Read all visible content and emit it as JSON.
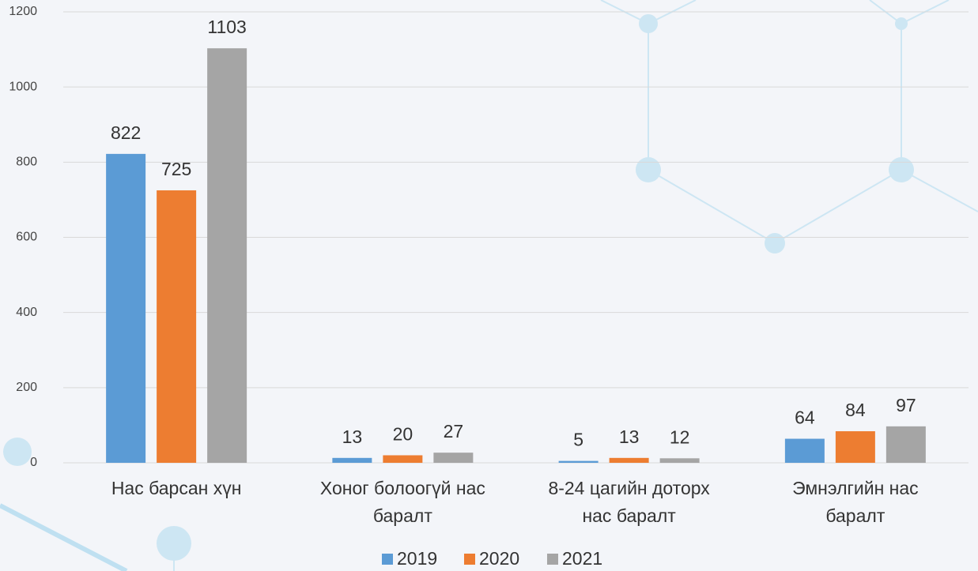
{
  "chart_data": {
    "type": "bar",
    "categories": [
      "Нас барсан хүн",
      "Хоног болоогүй нас баралт",
      "8-24 цагийн доторх нас баралт",
      "Эмнэлгийн нас баралт"
    ],
    "series": [
      {
        "name": "2019",
        "color": "#5b9bd5",
        "values": [
          822,
          13,
          5,
          64
        ]
      },
      {
        "name": "2020",
        "color": "#ed7d31",
        "values": [
          725,
          20,
          13,
          84
        ]
      },
      {
        "name": "2021",
        "color": "#a5a5a5",
        "values": [
          1103,
          27,
          12,
          97
        ]
      }
    ],
    "ylim": [
      0,
      1200
    ],
    "yticks": [
      0,
      200,
      400,
      600,
      800,
      1000,
      1200
    ],
    "grid": true,
    "legend": "bottom"
  }
}
